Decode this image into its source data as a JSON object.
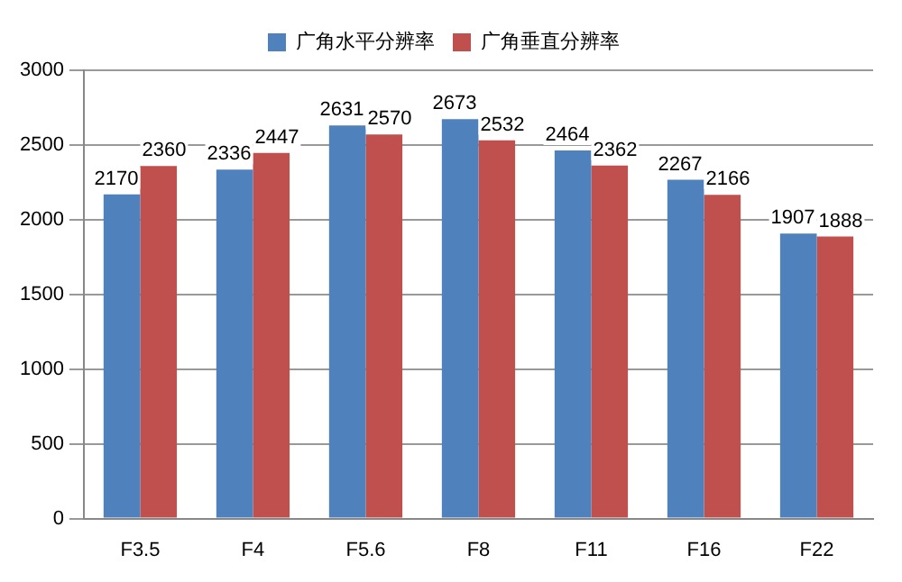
{
  "chart_data": {
    "type": "bar",
    "categories": [
      "F3.5",
      "F4",
      "F5.6",
      "F8",
      "F11",
      "F16",
      "F22"
    ],
    "series": [
      {
        "name": "广角水平分辨率",
        "color": "#4f81bd",
        "values": [
          2170,
          2336,
          2631,
          2673,
          2464,
          2267,
          1907
        ]
      },
      {
        "name": "广角垂直分辨率",
        "color": "#c0504d",
        "values": [
          2360,
          2447,
          2570,
          2532,
          2362,
          2166,
          1888
        ]
      }
    ],
    "ylim": [
      0,
      3000
    ],
    "yticks": [
      0,
      500,
      1000,
      1500,
      2000,
      2500,
      3000
    ],
    "grid": "y",
    "legend": "top",
    "data_labels": true
  }
}
